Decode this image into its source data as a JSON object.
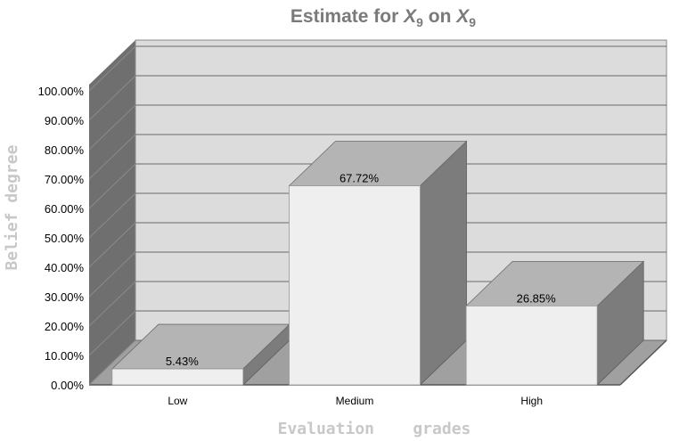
{
  "chart_data": {
    "type": "bar",
    "title": "Estimate for X9 on X9",
    "title_parts": {
      "prefix": "Estimate for ",
      "var1": "X",
      "sub1": "9",
      "middle": " on ",
      "var2": "X",
      "sub2": "9"
    },
    "xlabel": "Evaluation    grades",
    "ylabel": "Belief degree",
    "categories": [
      "Low",
      "Medium",
      "High"
    ],
    "values": [
      5.43,
      67.72,
      26.85
    ],
    "data_labels": [
      "5.43%",
      "67.72%",
      "26.85%"
    ],
    "ylim": [
      0,
      100
    ],
    "yticks": [
      "0.00%",
      "10.00%",
      "20.00%",
      "30.00%",
      "40.00%",
      "50.00%",
      "60.00%",
      "70.00%",
      "80.00%",
      "90.00%",
      "100.00%"
    ],
    "grid": true,
    "legend": "none",
    "style": "3d",
    "colors": {
      "bar_front": "#efefef",
      "bar_top": "#b4b4b4",
      "bar_side": "#7c7c7c",
      "back_wall": "#dcdcdc",
      "left_wall": "#6f6f6f",
      "floor": "#a0a0a0",
      "title": "#7a7a7a",
      "axis_title": "#c8c8c8"
    }
  }
}
